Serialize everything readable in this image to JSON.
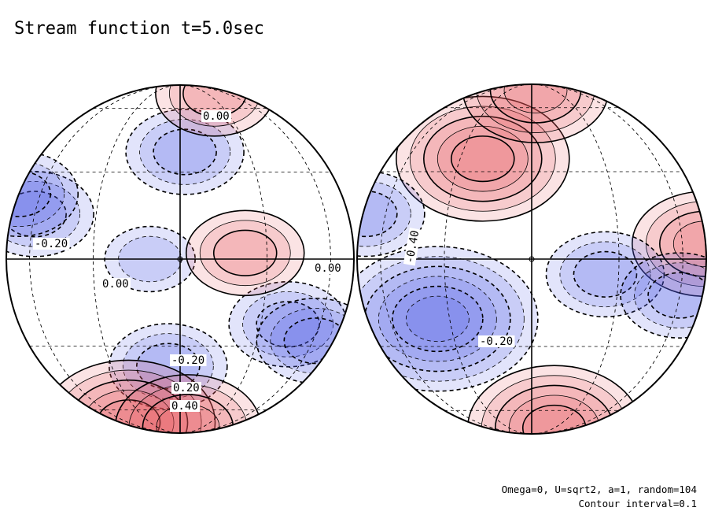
{
  "title": "Stream function t=5.0sec",
  "footer": {
    "params": "Omega=0, U=sqrt2, a=1, random=104",
    "contour": "Contour interval=0.1"
  },
  "colors": {
    "positive": "#e8505a",
    "negative": "#4a55e8",
    "zero": "#ffffff",
    "line": "#000000"
  },
  "chart_data": {
    "type": "heatmap",
    "projection": "orthographic",
    "title": "Stream function t=5.0sec",
    "contour_interval": 0.1,
    "panels": [
      {
        "name": "left",
        "contour_labels": [
          "0.00",
          "-0.20",
          "0.00",
          "0.00",
          "-0.20",
          "0.20",
          "0.40"
        ],
        "extrema": [
          {
            "sign": "neg",
            "lon": -60,
            "lat": 15,
            "amp": 0.32
          },
          {
            "sign": "neg",
            "lon": -88,
            "lat": 22,
            "amp": 0.3
          },
          {
            "sign": "neg",
            "lon": 2,
            "lat": 38,
            "amp": 0.28
          },
          {
            "sign": "neg",
            "lon": -10,
            "lat": 0,
            "amp": 0.22
          },
          {
            "sign": "neg",
            "lon": 42,
            "lat": -22,
            "amp": 0.3
          },
          {
            "sign": "neg",
            "lon": 62,
            "lat": -28,
            "amp": 0.3
          },
          {
            "sign": "neg",
            "lon": -5,
            "lat": -38,
            "amp": 0.26
          },
          {
            "sign": "pos",
            "lon": 22,
            "lat": 2,
            "amp": 0.34
          },
          {
            "sign": "pos",
            "lon": 40,
            "lat": 72,
            "amp": 0.3
          },
          {
            "sign": "pos",
            "lon": -60,
            "lat": -70,
            "amp": 0.48
          },
          {
            "sign": "pos",
            "lon": 10,
            "lat": -75,
            "amp": 0.4
          }
        ]
      },
      {
        "name": "right",
        "contour_labels": [
          "-0.40",
          "-0.20"
        ],
        "extrema": [
          {
            "sign": "pos",
            "lon": -20,
            "lat": 35,
            "amp": 0.5
          },
          {
            "sign": "pos",
            "lon": 5,
            "lat": 75,
            "amp": 0.4
          },
          {
            "sign": "pos",
            "lon": 85,
            "lat": 5,
            "amp": 0.44
          },
          {
            "sign": "pos",
            "lon": 30,
            "lat": -75,
            "amp": 0.46
          },
          {
            "sign": "neg",
            "lon": -35,
            "lat": -20,
            "amp": 0.56
          },
          {
            "sign": "neg",
            "lon": 25,
            "lat": -5,
            "amp": 0.3
          },
          {
            "sign": "neg",
            "lon": 60,
            "lat": -12,
            "amp": 0.32
          },
          {
            "sign": "neg",
            "lon": -80,
            "lat": 15,
            "amp": 0.3
          }
        ]
      }
    ]
  }
}
